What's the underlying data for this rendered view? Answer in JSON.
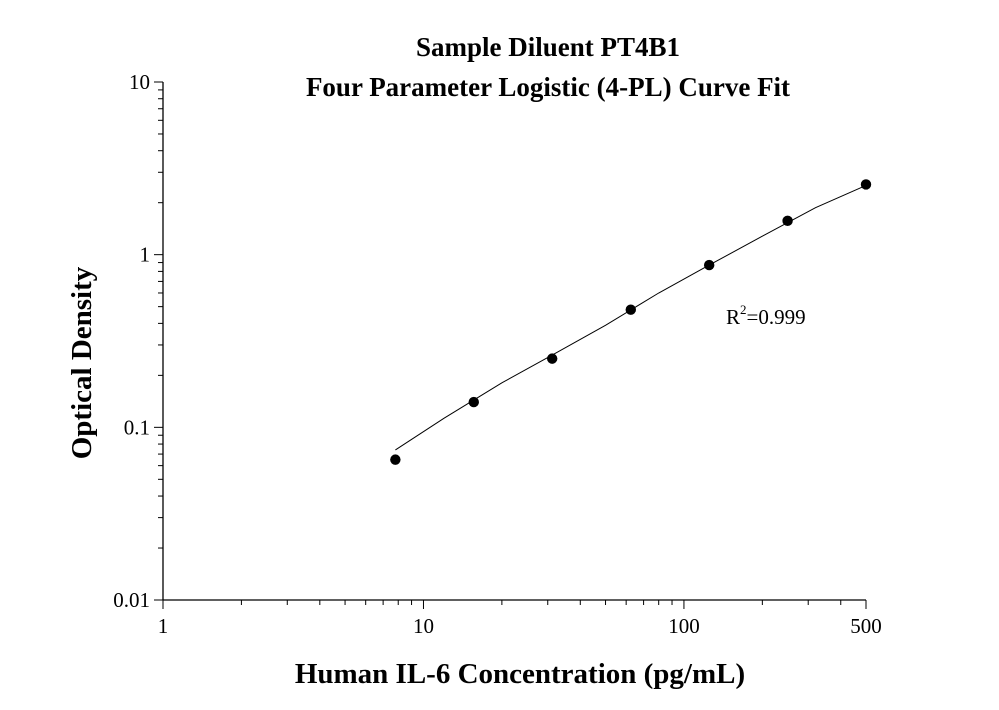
{
  "chart_data": {
    "type": "scatter",
    "title": "Sample Diluent PT4B1",
    "subtitle": "Four Parameter Logistic (4-PL) Curve Fit",
    "xlabel": "Human IL-6 Concentration (pg/mL)",
    "ylabel": "Optical Density",
    "x_scale": "log",
    "y_scale": "log",
    "xlim": [
      1,
      500
    ],
    "ylim": [
      0.01,
      10
    ],
    "x_ticks": [
      "1",
      "10",
      "100",
      "500"
    ],
    "y_ticks": [
      "0.01",
      "0.1",
      "1",
      "10"
    ],
    "grid": false,
    "points": {
      "x": [
        7.8,
        15.6,
        31.2,
        62.5,
        125,
        250,
        500
      ],
      "y": [
        0.065,
        0.14,
        0.25,
        0.48,
        0.87,
        1.57,
        2.55
      ]
    },
    "fit_curve": {
      "kind": "4-PL",
      "x": [
        7.8,
        12,
        20,
        31.2,
        50,
        80,
        125,
        200,
        320,
        500
      ],
      "y": [
        0.074,
        0.113,
        0.181,
        0.262,
        0.39,
        0.6,
        0.87,
        1.28,
        1.87,
        2.52
      ]
    },
    "annotation": {
      "base": "R",
      "superscript": "2",
      "text": "=0.999"
    }
  }
}
